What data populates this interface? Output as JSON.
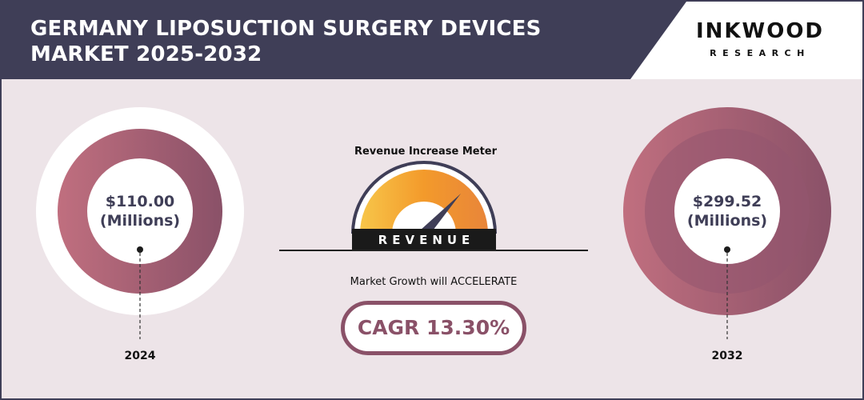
{
  "header": {
    "title_line1": "GERMANY LIPOSUCTION SURGERY DEVICES",
    "title_line2": "MARKET 2025-2032"
  },
  "brand": {
    "name": "INKWOOD",
    "sub": "RESEARCH"
  },
  "meter": {
    "title": "Revenue Increase Meter",
    "label": "REVENUE"
  },
  "growth_text": "Market Growth will ACCELERATE",
  "cagr_text": "CAGR 13.30%",
  "colors": {
    "navy": "#3f3e57",
    "rose": "#c06f7f",
    "plum": "#8a5168",
    "background": "#ede4e8",
    "gauge_orange": "#f39a2b",
    "gauge_yellow": "#f7c64a"
  },
  "chart_data": {
    "type": "bar",
    "categories": [
      "2024",
      "2032"
    ],
    "values": [
      110.0,
      299.52
    ],
    "value_labels": [
      "$110.00",
      "$299.52"
    ],
    "unit": "(Millions)",
    "cagr_percent": 13.3
  }
}
